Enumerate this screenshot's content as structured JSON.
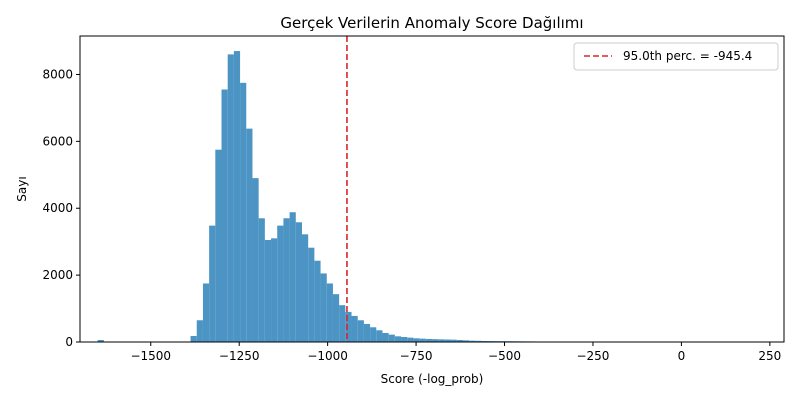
{
  "chart_data": {
    "type": "bar",
    "title": "Gerçek Verilerin Anomaly Score Dağılımı",
    "xlabel": "Score (-log_prob)",
    "ylabel": "Sayı",
    "xlim": [
      -1700,
      290
    ],
    "ylim": [
      0,
      9150
    ],
    "xticks": [
      -1500,
      -1250,
      -1000,
      -750,
      -500,
      -250,
      0,
      250
    ],
    "xtick_labels": [
      "−1500",
      "−1250",
      "−1000",
      "−750",
      "−500",
      "−250",
      "0",
      "250"
    ],
    "yticks": [
      0,
      2000,
      4000,
      6000,
      8000
    ],
    "ytick_labels": [
      "0",
      "2000",
      "4000",
      "6000",
      "8000"
    ],
    "bar_color": "#4b94c4",
    "bins": {
      "start": -1650,
      "width": 17.5,
      "counts": [
        60,
        0,
        0,
        0,
        0,
        0,
        0,
        0,
        0,
        0,
        0,
        0,
        0,
        0,
        10,
        180,
        650,
        1750,
        3480,
        5750,
        7550,
        8600,
        8700,
        7750,
        6380,
        4900,
        3700,
        3050,
        3100,
        3480,
        3700,
        3880,
        3580,
        3220,
        2820,
        2430,
        2050,
        1750,
        1430,
        1100,
        900,
        780,
        650,
        540,
        440,
        350,
        270,
        220,
        170,
        150,
        130,
        110,
        100,
        90,
        85,
        80,
        75,
        70,
        60,
        50,
        40,
        35,
        30,
        28,
        26,
        25,
        24,
        22,
        20,
        18,
        16,
        14,
        12,
        10,
        9,
        8,
        7
      ]
    },
    "vline": {
      "x": -945.4,
      "color": "#d62728",
      "style": "dashed",
      "label": "95.0th perc. = -945.4"
    },
    "legend_position": "upper right",
    "grid": false
  }
}
